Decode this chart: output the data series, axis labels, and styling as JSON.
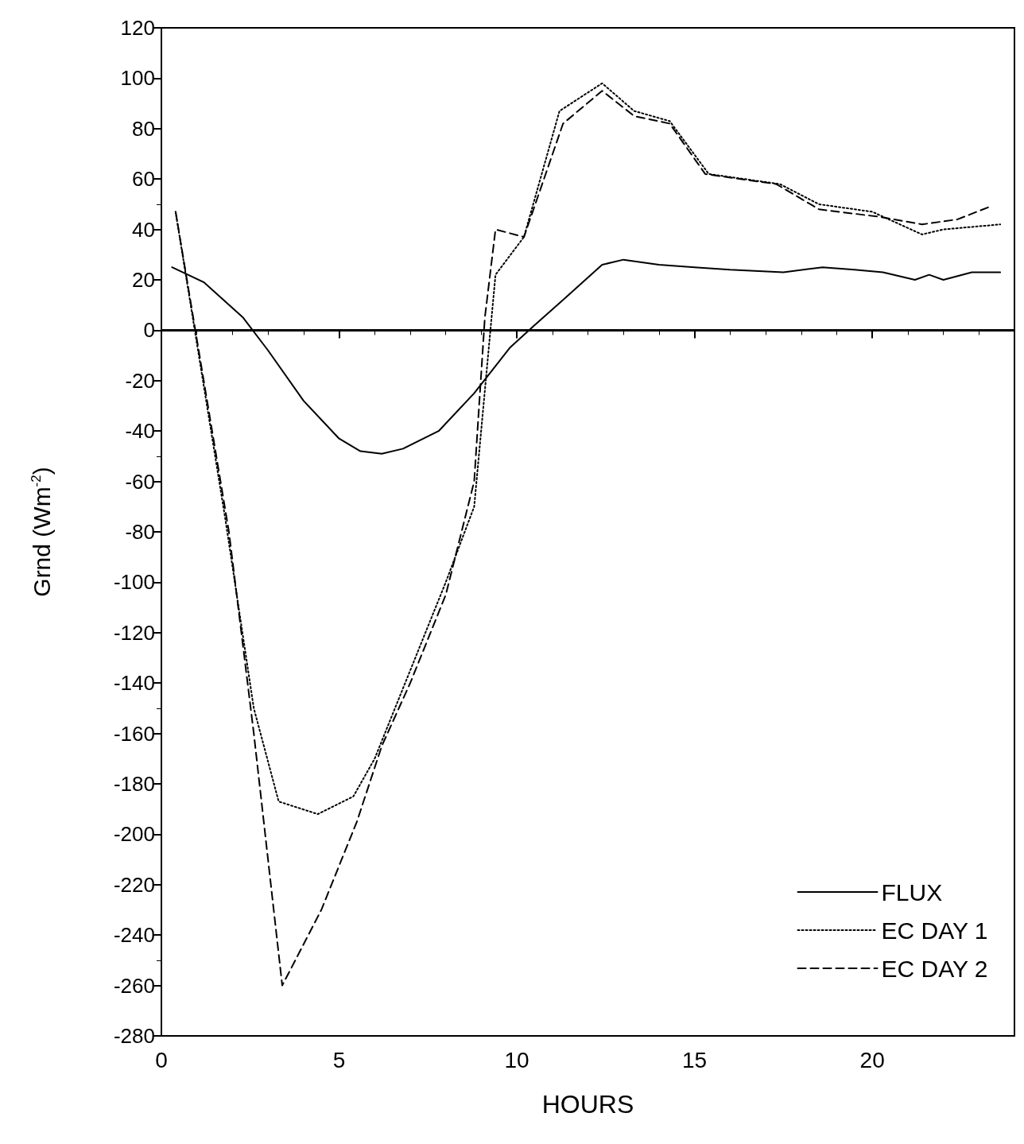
{
  "chart_data": {
    "type": "line",
    "xlabel": "HOURS",
    "ylabel": "Grnd (Wm$^{-2}$)",
    "xlim": [
      0,
      24
    ],
    "xticks": [
      0,
      5,
      10,
      15,
      20
    ],
    "ylim": [
      -280,
      120
    ],
    "yticks": [
      -280,
      -260,
      -240,
      -220,
      -200,
      -180,
      -160,
      -140,
      -120,
      -100,
      -80,
      -60,
      -40,
      -20,
      0,
      20,
      40,
      60,
      80,
      100,
      120
    ],
    "grid": false,
    "legend": "bottom right",
    "marker": "none",
    "ref_lines": [
      {
        "axis": "y",
        "value": 0,
        "label": null
      }
    ],
    "series": [
      {
        "name": "FLUX",
        "color": "#000000",
        "line_style": "solid",
        "x": [
          0.3,
          1.2,
          2.3,
          3,
          4,
          5,
          5.6,
          6.2,
          6.8,
          7.8,
          8.8,
          9.8,
          10.5,
          11.3,
          12.4,
          13,
          14,
          15,
          16,
          17.5,
          18.6,
          19.5,
          20.3,
          21.2,
          21.6,
          22,
          22.8,
          23.6
        ],
        "values": [
          25,
          19,
          5,
          -8,
          -28,
          -43,
          -48,
          -49,
          -47,
          -40,
          -25,
          -7,
          2,
          12,
          26,
          28,
          26,
          25,
          24,
          23,
          25,
          24,
          23,
          20,
          22,
          20,
          23,
          23
        ]
      },
      {
        "name": "EC DAY 1",
        "color": "#000000",
        "line_style": "dotted",
        "x": [
          0.4,
          1.8,
          2.6,
          3.3,
          4.4,
          5.4,
          6,
          7,
          8,
          8.8,
          9.4,
          10.2,
          11.2,
          12.4,
          13.3,
          14.3,
          15.4,
          17.4,
          18.5,
          20,
          21.4,
          22,
          23.6
        ],
        "values": [
          47,
          -75,
          -150,
          -187,
          -192,
          -185,
          -170,
          -135,
          -100,
          -70,
          22,
          37,
          87,
          98,
          87,
          83,
          62,
          58,
          50,
          47,
          38,
          40,
          42
        ]
      },
      {
        "name": "EC DAY 2",
        "color": "#000000",
        "line_style": "dashed",
        "x": [
          0.4,
          1.9,
          2.6,
          3.4,
          4.5,
          5.5,
          6.2,
          7,
          8,
          8.8,
          9.1,
          9.4,
          10.2,
          11.3,
          12.4,
          13.3,
          14.3,
          15.3,
          17.3,
          18.5,
          20.2,
          21.4,
          22.4,
          23.3
        ],
        "values": [
          47,
          -80,
          -160,
          -260,
          -230,
          -195,
          -165,
          -140,
          -105,
          -60,
          5,
          40,
          37,
          82,
          95,
          85,
          82,
          62,
          58,
          48,
          45,
          42,
          44,
          49
        ]
      }
    ]
  }
}
